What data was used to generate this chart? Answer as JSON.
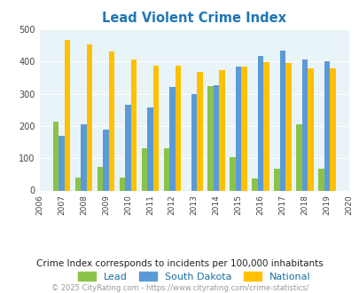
{
  "title": "Lead Violent Crime Index",
  "years": [
    2006,
    2007,
    2008,
    2009,
    2010,
    2011,
    2012,
    2013,
    2014,
    2015,
    2016,
    2017,
    2018,
    2019,
    2020
  ],
  "lead": [
    0,
    214,
    40,
    74,
    40,
    130,
    132,
    0,
    323,
    102,
    37,
    68,
    204,
    68,
    0
  ],
  "south_dakota": [
    0,
    170,
    204,
    190,
    265,
    257,
    322,
    300,
    327,
    384,
    418,
    435,
    405,
    400,
    0
  ],
  "national": [
    0,
    467,
    454,
    432,
    406,
    387,
    387,
    368,
    372,
    383,
    397,
    394,
    379,
    379,
    0
  ],
  "lead_color": "#8bc34a",
  "sd_color": "#5b9bd5",
  "national_color": "#ffc000",
  "bg_color": "#e8f4f8",
  "ylim": [
    0,
    500
  ],
  "yticks": [
    0,
    100,
    200,
    300,
    400,
    500
  ],
  "subtitle": "Crime Index corresponds to incidents per 100,000 inhabitants",
  "footer": "© 2025 CityRating.com - https://www.cityrating.com/crime-statistics/",
  "title_color": "#1f77b4",
  "subtitle_color": "#222222",
  "footer_color": "#999999",
  "legend_color": "#1a6fa0"
}
